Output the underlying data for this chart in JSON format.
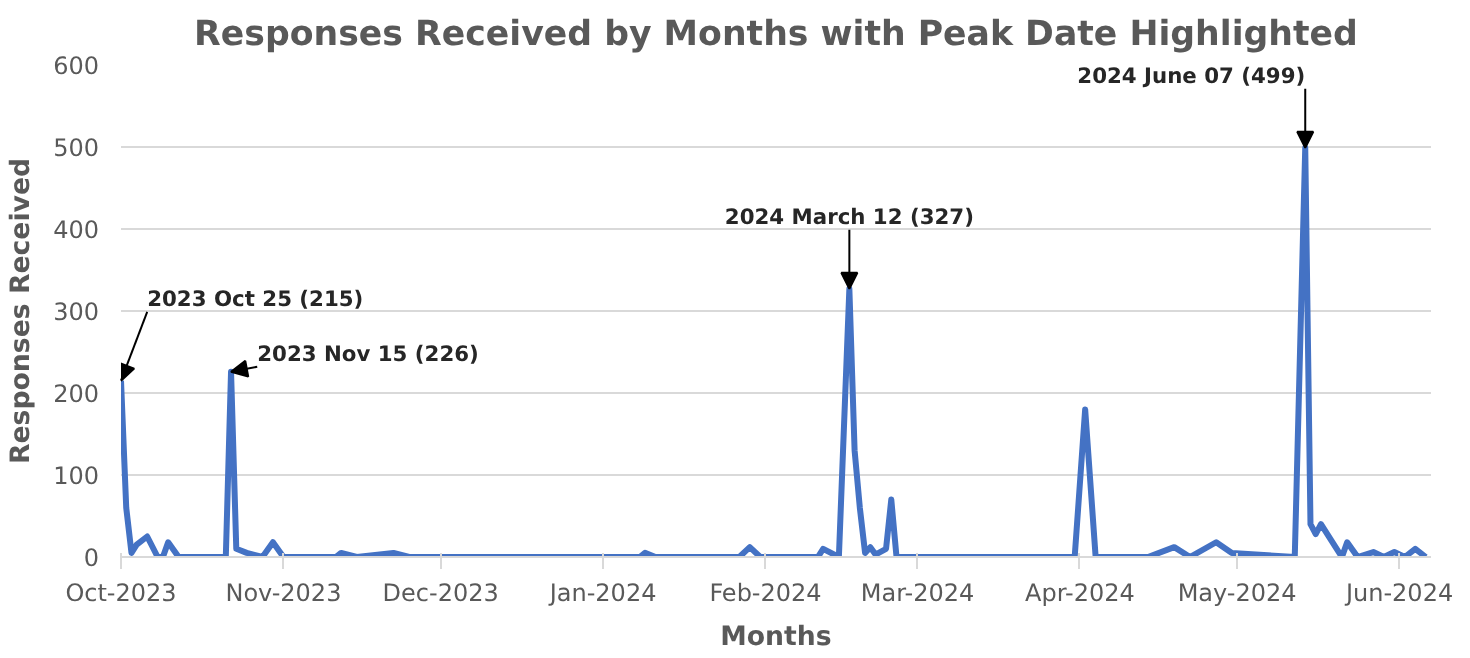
{
  "chart_data": {
    "type": "line",
    "title": "Responses Received by Months with Peak Date Highlighted",
    "xlabel": "Months",
    "ylabel": "Responses Received",
    "x": [
      "2023-10-01",
      "2023-10-02",
      "2023-10-03",
      "2023-10-04",
      "2023-10-06",
      "2023-10-08",
      "2023-10-09",
      "2023-10-10",
      "2023-10-12",
      "2023-10-21",
      "2023-10-22",
      "2023-10-23",
      "2023-10-25",
      "2023-10-28",
      "2023-10-30",
      "2023-11-01",
      "2023-11-11",
      "2023-11-12",
      "2023-11-15",
      "2023-11-22",
      "2023-11-25",
      "2024-01-08",
      "2024-01-09",
      "2024-01-11",
      "2024-01-27",
      "2024-01-29",
      "2024-01-31",
      "2024-02-11",
      "2024-02-12",
      "2024-02-15",
      "2024-02-17",
      "2024-02-18",
      "2024-02-19",
      "2024-02-20",
      "2024-02-21",
      "2024-02-22",
      "2024-02-24",
      "2024-02-25",
      "2024-02-26",
      "2024-03-31",
      "2024-04-02",
      "2024-04-04",
      "2024-04-14",
      "2024-04-19",
      "2024-04-22",
      "2024-04-27",
      "2024-04-30",
      "2024-05-12",
      "2024-05-14",
      "2024-05-15",
      "2024-05-16",
      "2024-05-17",
      "2024-05-19",
      "2024-05-21",
      "2024-05-22",
      "2024-05-24",
      "2024-05-27",
      "2024-05-29",
      "2024-05-31",
      "2024-06-02",
      "2024-06-04",
      "2024-06-06"
    ],
    "series": [
      {
        "color": "#4472c4",
        "values": [
          215,
          60,
          5,
          15,
          25,
          0,
          0,
          18,
          0,
          0,
          226,
          10,
          5,
          0,
          18,
          0,
          0,
          5,
          0,
          5,
          0,
          0,
          5,
          0,
          0,
          12,
          0,
          0,
          10,
          0,
          327,
          130,
          60,
          5,
          12,
          3,
          10,
          70,
          0,
          0,
          180,
          0,
          0,
          12,
          0,
          18,
          5,
          0,
          499,
          40,
          28,
          40,
          20,
          0,
          18,
          0,
          6,
          0,
          6,
          0,
          10,
          0
        ]
      }
    ],
    "xlim": [
      "2023-10-01",
      "2024-06-07"
    ],
    "xticks": [
      {
        "value": "2023-10-01",
        "label": "Oct-2023"
      },
      {
        "value": "2023-11-01",
        "label": "Nov-2023"
      },
      {
        "value": "2023-12-01",
        "label": "Dec-2023"
      },
      {
        "value": "2024-01-01",
        "label": "Jan-2024"
      },
      {
        "value": "2024-02-01",
        "label": "Feb-2024"
      },
      {
        "value": "2024-03-01",
        "label": "Mar-2024"
      },
      {
        "value": "2024-04-01",
        "label": "Apr-2024"
      },
      {
        "value": "2024-05-01",
        "label": "May-2024"
      },
      {
        "value": "2024-06-01",
        "label": "Jun-2024"
      }
    ],
    "ylim": [
      0,
      600
    ],
    "yticks": [
      0,
      100,
      200,
      300,
      400,
      500,
      600
    ],
    "grid": "y",
    "marker": "none",
    "line_style": "solid",
    "annotations": [
      {
        "text": "2023 Oct 25 (215)",
        "x": "2023-10-01",
        "y": 215
      },
      {
        "text": "2023 Nov 15 (226)",
        "x": "2023-10-22",
        "y": 226
      },
      {
        "text": "2024 March 12 (327)",
        "x": "2024-02-17",
        "y": 327
      },
      {
        "text": "2024 June 07 (499)",
        "x": "2024-05-14",
        "y": 499
      }
    ]
  }
}
